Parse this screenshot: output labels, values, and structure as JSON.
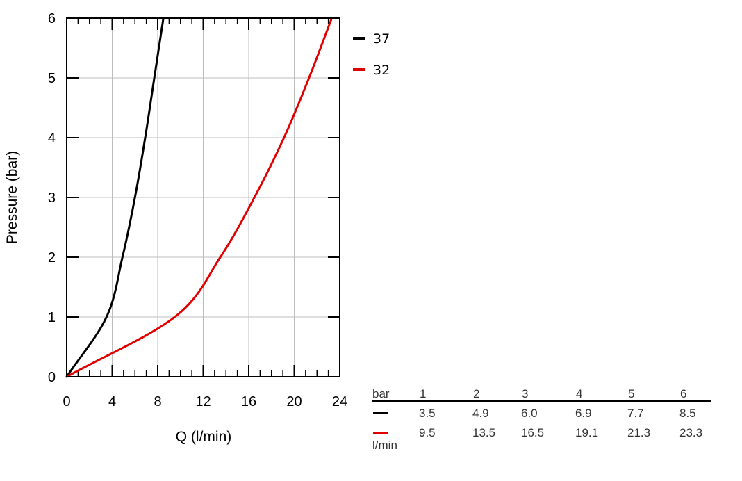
{
  "chart_data": {
    "type": "line",
    "xlabel": "Q (l/min)",
    "ylabel": "Pressure (bar)",
    "xlim": [
      0,
      24
    ],
    "ylim": [
      0,
      6
    ],
    "xticks": [
      "0",
      "4",
      "8",
      "12",
      "16",
      "20",
      "24"
    ],
    "yticks": [
      "0",
      "1",
      "2",
      "3",
      "4",
      "5",
      "6"
    ],
    "grid": true,
    "legend_position": "right of plot, top",
    "series": [
      {
        "name": "37",
        "color": "#000000",
        "points": [
          [
            0,
            0
          ],
          [
            3.5,
            1
          ],
          [
            4.9,
            2
          ],
          [
            6.0,
            3
          ],
          [
            6.9,
            4
          ],
          [
            7.7,
            5
          ],
          [
            8.5,
            6
          ]
        ]
      },
      {
        "name": "32",
        "color": "#e00000",
        "points": [
          [
            0,
            0
          ],
          [
            9.5,
            1
          ],
          [
            13.5,
            2
          ],
          [
            16.5,
            3
          ],
          [
            19.1,
            4
          ],
          [
            21.3,
            5
          ],
          [
            23.3,
            6
          ]
        ]
      }
    ]
  },
  "table": {
    "header_label": "bar",
    "unit_label": "l/min",
    "columns": [
      "1",
      "2",
      "3",
      "4",
      "5",
      "6"
    ],
    "rows": [
      {
        "color": "#000000",
        "values": [
          "3.5",
          "4.9",
          "6.0",
          "6.9",
          "7.7",
          "8.5"
        ]
      },
      {
        "color": "#e00000",
        "values": [
          "9.5",
          "13.5",
          "16.5",
          "19.1",
          "21.3",
          "23.3"
        ]
      }
    ]
  }
}
